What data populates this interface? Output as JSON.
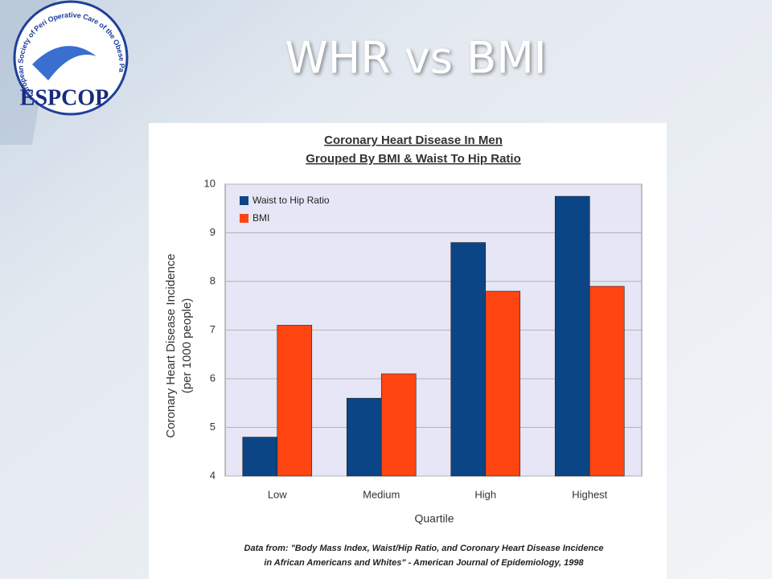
{
  "slide": {
    "title": "WHR vs BMI",
    "logo_text": "ESPCOP",
    "logo_ring": "European Society of Peri Operative Care of the Obese Patient"
  },
  "chart_data": {
    "type": "bar",
    "title": "Coronary Heart Disease In Men",
    "subtitle": "Grouped By BMI & Waist To Hip Ratio",
    "ylabel": [
      "Coronary Heart Disease Incidence",
      "(per 1000 people)"
    ],
    "xlabel": "Quartile",
    "note": [
      "Data from: \"Body Mass Index, Waist/Hip Ratio, and Coronary Heart Disease Incidence",
      "in African Americans and Whites\" - American Journal of Epidemiology, 1998"
    ],
    "categories": [
      "Low",
      "Medium",
      "High",
      "Highest"
    ],
    "series": [
      {
        "name": "Waist to Hip Ratio",
        "color": "#0b4586",
        "values": [
          4.8,
          5.6,
          8.8,
          9.75
        ]
      },
      {
        "name": "BMI",
        "color": "#ff4512",
        "values": [
          7.1,
          6.1,
          7.8,
          7.9
        ]
      }
    ],
    "ylim": [
      4,
      10
    ],
    "yticks": [
      4,
      5,
      6,
      7,
      8,
      9,
      10
    ],
    "grid": true,
    "legend": "top-left"
  }
}
